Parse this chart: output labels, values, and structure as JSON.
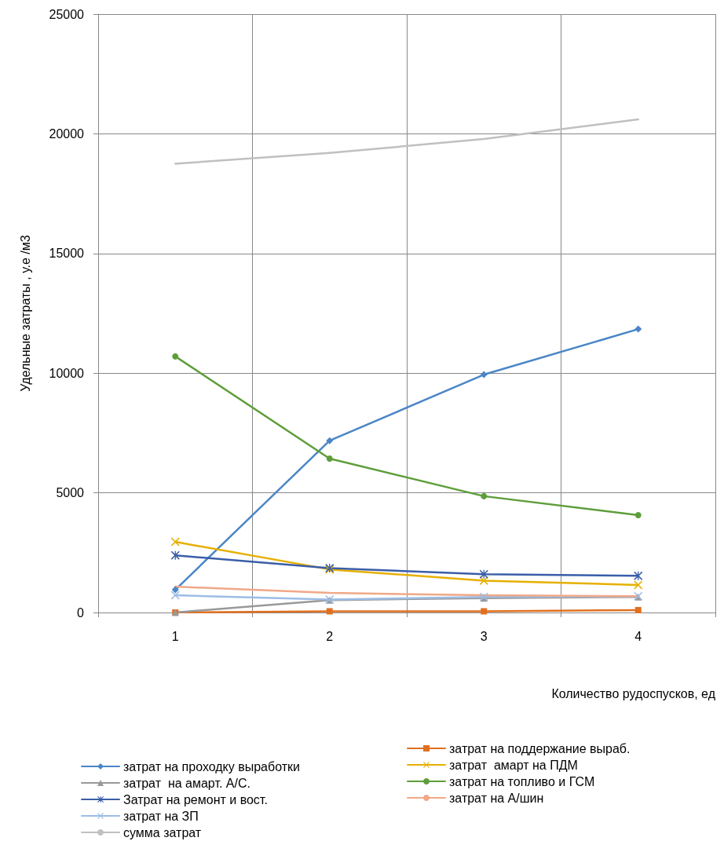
{
  "chart_data": {
    "type": "line",
    "xlabel": "Количество рудоспусков, ед",
    "ylabel": "Удельные затраты , у.е /м3",
    "categories": [
      "1",
      "2",
      "3",
      "4"
    ],
    "ylim": [
      0,
      25000
    ],
    "yticks": [
      0,
      5000,
      10000,
      15000,
      20000,
      25000
    ],
    "grid": true,
    "legend": "bottom",
    "series": [
      {
        "name": "затрат на проходку выработки",
        "color": "#4a86c6",
        "marker": "diamond",
        "values": [
          950,
          7180,
          9940,
          11840
        ]
      },
      {
        "name": "затрат на поддержание выраб.",
        "color": "#e07020",
        "marker": "square",
        "values": [
          0,
          50,
          50,
          100
        ]
      },
      {
        "name": "затрат  на амарт. А/С.",
        "color": "#999999",
        "marker": "triangle",
        "values": [
          0,
          520,
          600,
          650
        ]
      },
      {
        "name": "затрат  амарт на ПДМ",
        "color": "#e6b000",
        "marker": "cross",
        "values": [
          2950,
          1800,
          1330,
          1150
        ]
      },
      {
        "name": "Затрат на ремонт и вост.",
        "color": "#3a5ea8",
        "marker": "star",
        "values": [
          2390,
          1850,
          1600,
          1530
        ]
      },
      {
        "name": "затрат на топливо и ГСМ",
        "color": "#5e9e3a",
        "marker": "circle",
        "values": [
          10700,
          6430,
          4860,
          4070
        ]
      },
      {
        "name": "затрат на ЗП",
        "color": "#9dbde6",
        "marker": "cross",
        "values": [
          720,
          540,
          650,
          680
        ]
      },
      {
        "name": "затрат на А/шин",
        "color": "#f0a888",
        "marker": "none",
        "values": [
          1080,
          820,
          720,
          680
        ]
      },
      {
        "name": "сумма затрат",
        "color": "#c0c0c0",
        "marker": "none",
        "values": [
          18750,
          19200,
          19780,
          20600
        ]
      }
    ]
  }
}
